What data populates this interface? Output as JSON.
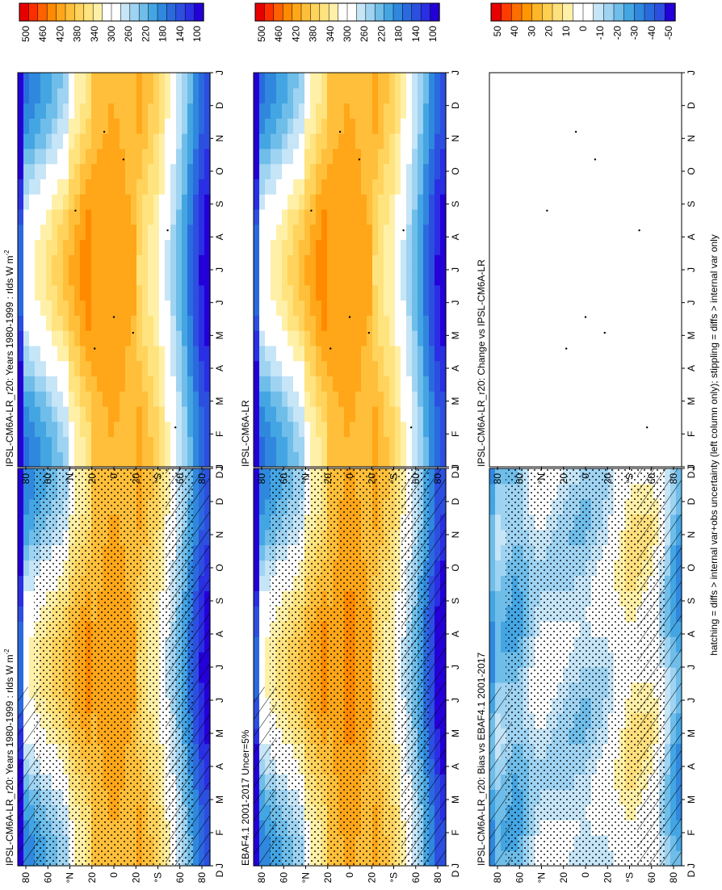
{
  "footer_note": "hatching = diffs > internal var+obs uncertainty (left column only); stippling = diffs > internal var only",
  "months": [
    "J",
    "F",
    "M",
    "A",
    "M",
    "J",
    "J",
    "A",
    "S",
    "O",
    "N",
    "D",
    "J"
  ],
  "month_end_label": "D",
  "lat_ticks": [
    "80",
    "60",
    "°N",
    "20",
    "0",
    "20",
    "°S",
    "60",
    "80"
  ],
  "legend_abs": [
    "500",
    "460",
    "420",
    "380",
    "340",
    "300",
    "260",
    "220",
    "180",
    "140",
    "100"
  ],
  "legend_diff": [
    "50",
    "40",
    "30",
    "20",
    "10",
    "0",
    "-10",
    "-20",
    "-30",
    "-40",
    "-50"
  ],
  "colors": {
    "abs_scale": [
      "#e60000",
      "#ff2e00",
      "#ff6000",
      "#ff8a00",
      "#ffa619",
      "#ffbf3a",
      "#ffd35c",
      "#ffe37f",
      "#fff0a8",
      "#ffffff",
      "#ffffff",
      "#c6e5f7",
      "#9fd3f2",
      "#6fbde9",
      "#44a5e3",
      "#2f88dd",
      "#2a6ade",
      "#2c4fe0",
      "#2a2fe3",
      "#2400d8"
    ],
    "diff_scale": [
      "#e60000",
      "#ff3c00",
      "#ff6e00",
      "#ff9600",
      "#ffb52a",
      "#ffcf50",
      "#ffe07e",
      "#fff0a8",
      "#ffffff",
      "#ffffff",
      "#c6e5f7",
      "#9fd3f2",
      "#6fbde9",
      "#44a5e3",
      "#2f88dd",
      "#2a6ade",
      "#2c4fe0",
      "#2400d8"
    ]
  },
  "chart_data": [
    {
      "type": "heatmap",
      "title": "IPSL-CM6A-LR_r20: Years 1980-1999 : rlds W m",
      "units_superscript": "-2",
      "variable": "rlds",
      "units": "W m-2",
      "x": "month (J-D, repeating J)",
      "y": "latitude (80N to 80S)",
      "value_range": [
        100,
        500
      ],
      "zonal_profile_jja": {
        "lat": [
          80,
          60,
          40,
          20,
          0,
          -20,
          -40,
          -60,
          -80
        ],
        "values": [
          270,
          310,
          350,
          390,
          410,
          390,
          340,
          240,
          130
        ]
      },
      "overlays": [
        "stippling",
        "hatching"
      ]
    },
    {
      "type": "heatmap",
      "title": "IPSL-CM6A-LR_r20: Years 1980-1999 : rlds W m",
      "units_superscript": "-2",
      "value_range": [
        100,
        500
      ],
      "zonal_profile_jja": {
        "lat": [
          80,
          60,
          40,
          20,
          0,
          -20,
          -40,
          -60,
          -80
        ],
        "values": [
          260,
          300,
          350,
          400,
          410,
          390,
          340,
          240,
          130
        ]
      },
      "overlays": [
        "sparse stippling"
      ]
    },
    {
      "type": "heatmap",
      "title": "EBAF4.1 2001-2017 Uncer=5%",
      "value_range": [
        100,
        500
      ],
      "zonal_profile_jja": {
        "lat": [
          80,
          60,
          40,
          20,
          0,
          -20,
          -40,
          -60,
          -80
        ],
        "values": [
          270,
          310,
          350,
          390,
          420,
          390,
          340,
          240,
          120
        ]
      },
      "overlays": [
        "stippling",
        "hatching"
      ]
    },
    {
      "type": "heatmap",
      "title": "IPSL-CM6A-LR",
      "value_range": [
        100,
        500
      ],
      "zonal_profile_jja": {
        "lat": [
          80,
          60,
          40,
          20,
          0,
          -20,
          -40,
          -60,
          -80
        ],
        "values": [
          260,
          300,
          350,
          400,
          410,
          390,
          340,
          240,
          130
        ]
      },
      "overlays": [
        "sparse stippling"
      ]
    },
    {
      "type": "heatmap",
      "title": "IPSL-CM6A-LR_r20: Bias vs EBAF4.1 2001-2017",
      "value_range": [
        -50,
        50
      ],
      "zonal_profile_annual": {
        "lat": [
          80,
          60,
          40,
          20,
          0,
          -20,
          -40,
          -60,
          -80
        ],
        "values": [
          -15,
          -20,
          -5,
          -10,
          -12,
          -5,
          10,
          5,
          -25
        ]
      },
      "overlays": [
        "stippling",
        "hatching"
      ]
    },
    {
      "type": "heatmap",
      "title": "IPSL-CM6A-LR_r20: Change vs IPSL-CM6A-LR",
      "value_range": [
        -50,
        50
      ],
      "zonal_profile_annual": {
        "lat": [
          80,
          60,
          40,
          20,
          0,
          -20,
          -40,
          -60,
          -80
        ],
        "values": [
          0,
          0,
          0,
          0,
          0,
          0,
          0,
          0,
          0
        ]
      },
      "overlays": [
        "sparse stippling"
      ]
    }
  ]
}
